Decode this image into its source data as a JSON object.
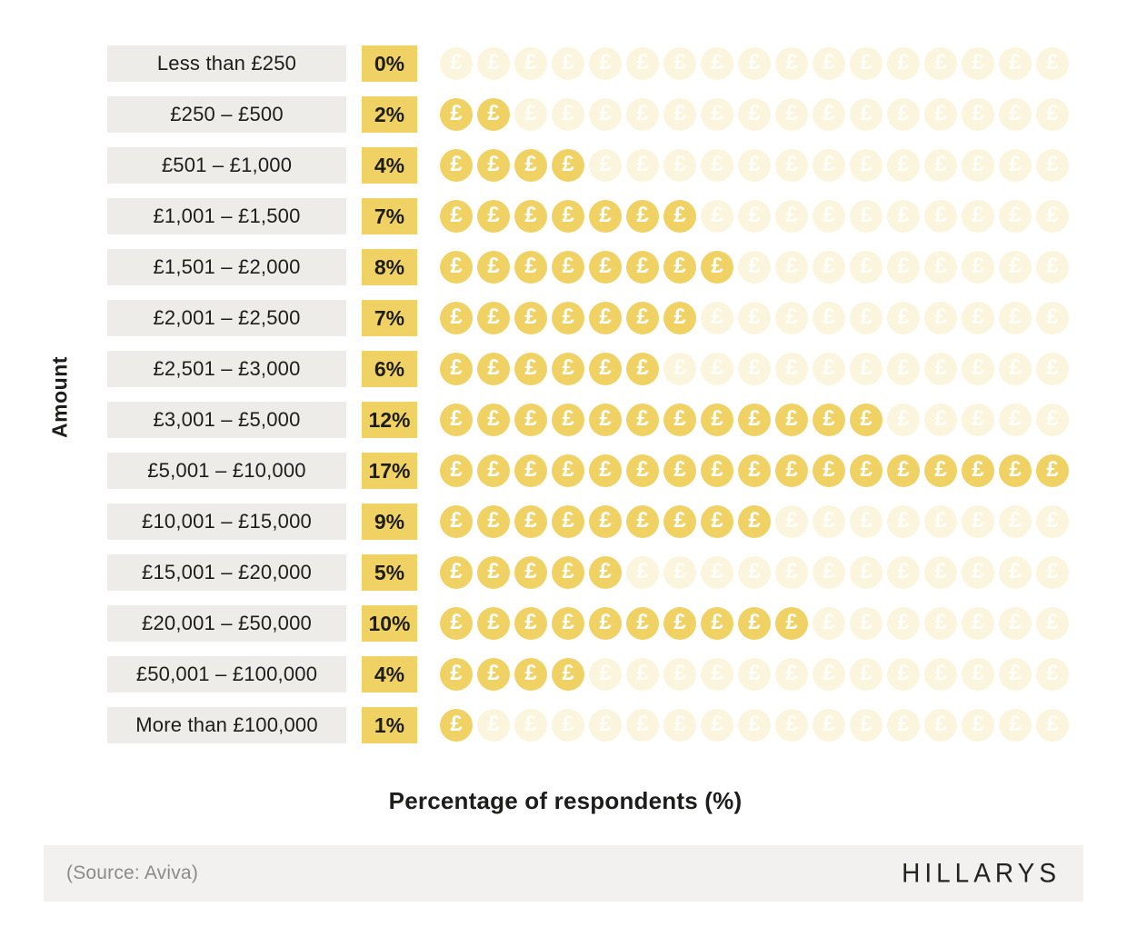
{
  "page": {
    "y_axis_label": "Amount",
    "x_axis_label": "Percentage of respondents (%)"
  },
  "chart_data": {
    "type": "bar",
    "subtype": "pictogram",
    "icon_glyph": "£",
    "icon_semantic": "pound-coin-icon",
    "icons_per_row": 17,
    "categories": [
      "Less than £250",
      "£250 – £500",
      "£501 – £1,000",
      "£1,001 – £1,500",
      "£1,501 – £2,000",
      "£2,001 – £2,500",
      "£2,501 – £3,000",
      "£3,001 – £5,000",
      "£5,001 – £10,000",
      "£10,001 – £15,000",
      "£15,001 – £20,000",
      "£20,001 – £50,000",
      "£50,001 – £100,000",
      "More than £100,000"
    ],
    "values": [
      0,
      2,
      4,
      7,
      8,
      7,
      6,
      12,
      17,
      9,
      5,
      10,
      4,
      1
    ],
    "value_labels": [
      "0%",
      "2%",
      "4%",
      "7%",
      "8%",
      "7%",
      "6%",
      "12%",
      "17%",
      "9%",
      "5%",
      "10%",
      "4%",
      "1%"
    ],
    "title": "",
    "xlabel": "Percentage of respondents (%)",
    "ylabel": "Amount",
    "xlim": [
      0,
      17
    ],
    "grid": false,
    "legend": false,
    "colors": {
      "coin_filled": "#f0d264",
      "coin_faded": "#fbf5dd",
      "badge_bg": "#f0d264",
      "category_label_bg": "#eeece9",
      "text": "#1d1d1b",
      "footer_bg": "#f2f1ef",
      "source_text": "#8b8b88",
      "brand_text": "#23231f"
    }
  },
  "footer": {
    "source": "(Source: Aviva)",
    "brand": "HILLARYS"
  }
}
